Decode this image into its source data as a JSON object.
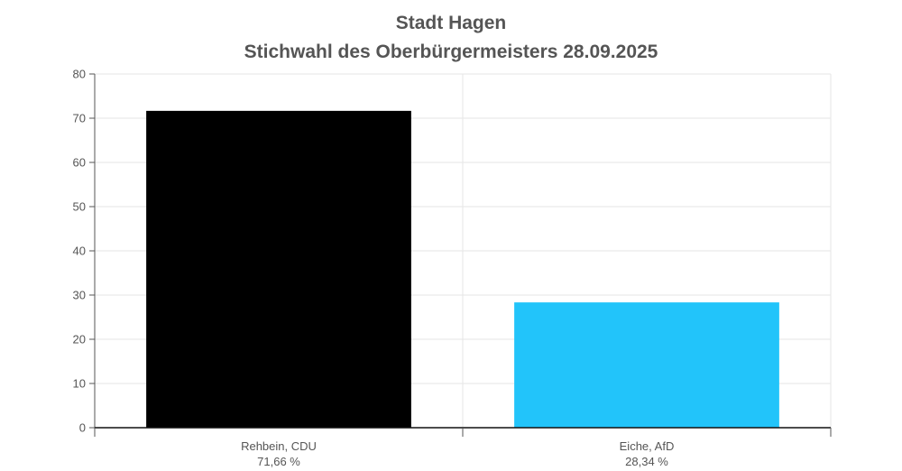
{
  "chart_data": {
    "type": "bar",
    "title": "Stadt Hagen",
    "subtitle": "Stichwahl des Oberbürgermeisters 28.09.2025",
    "categories": [
      "Rehbein, CDU",
      "Eiche, AfD"
    ],
    "value_labels": [
      "71,66 %",
      "28,34 %"
    ],
    "values": [
      71.66,
      28.34
    ],
    "colors": [
      "#000000",
      "#22c4fa"
    ],
    "ylim": [
      0,
      80
    ],
    "yticks": [
      "0",
      "10",
      "20",
      "30",
      "40",
      "50",
      "60",
      "70",
      "80"
    ],
    "xlabel": "",
    "ylabel": "",
    "grid": true,
    "legend": "none"
  }
}
